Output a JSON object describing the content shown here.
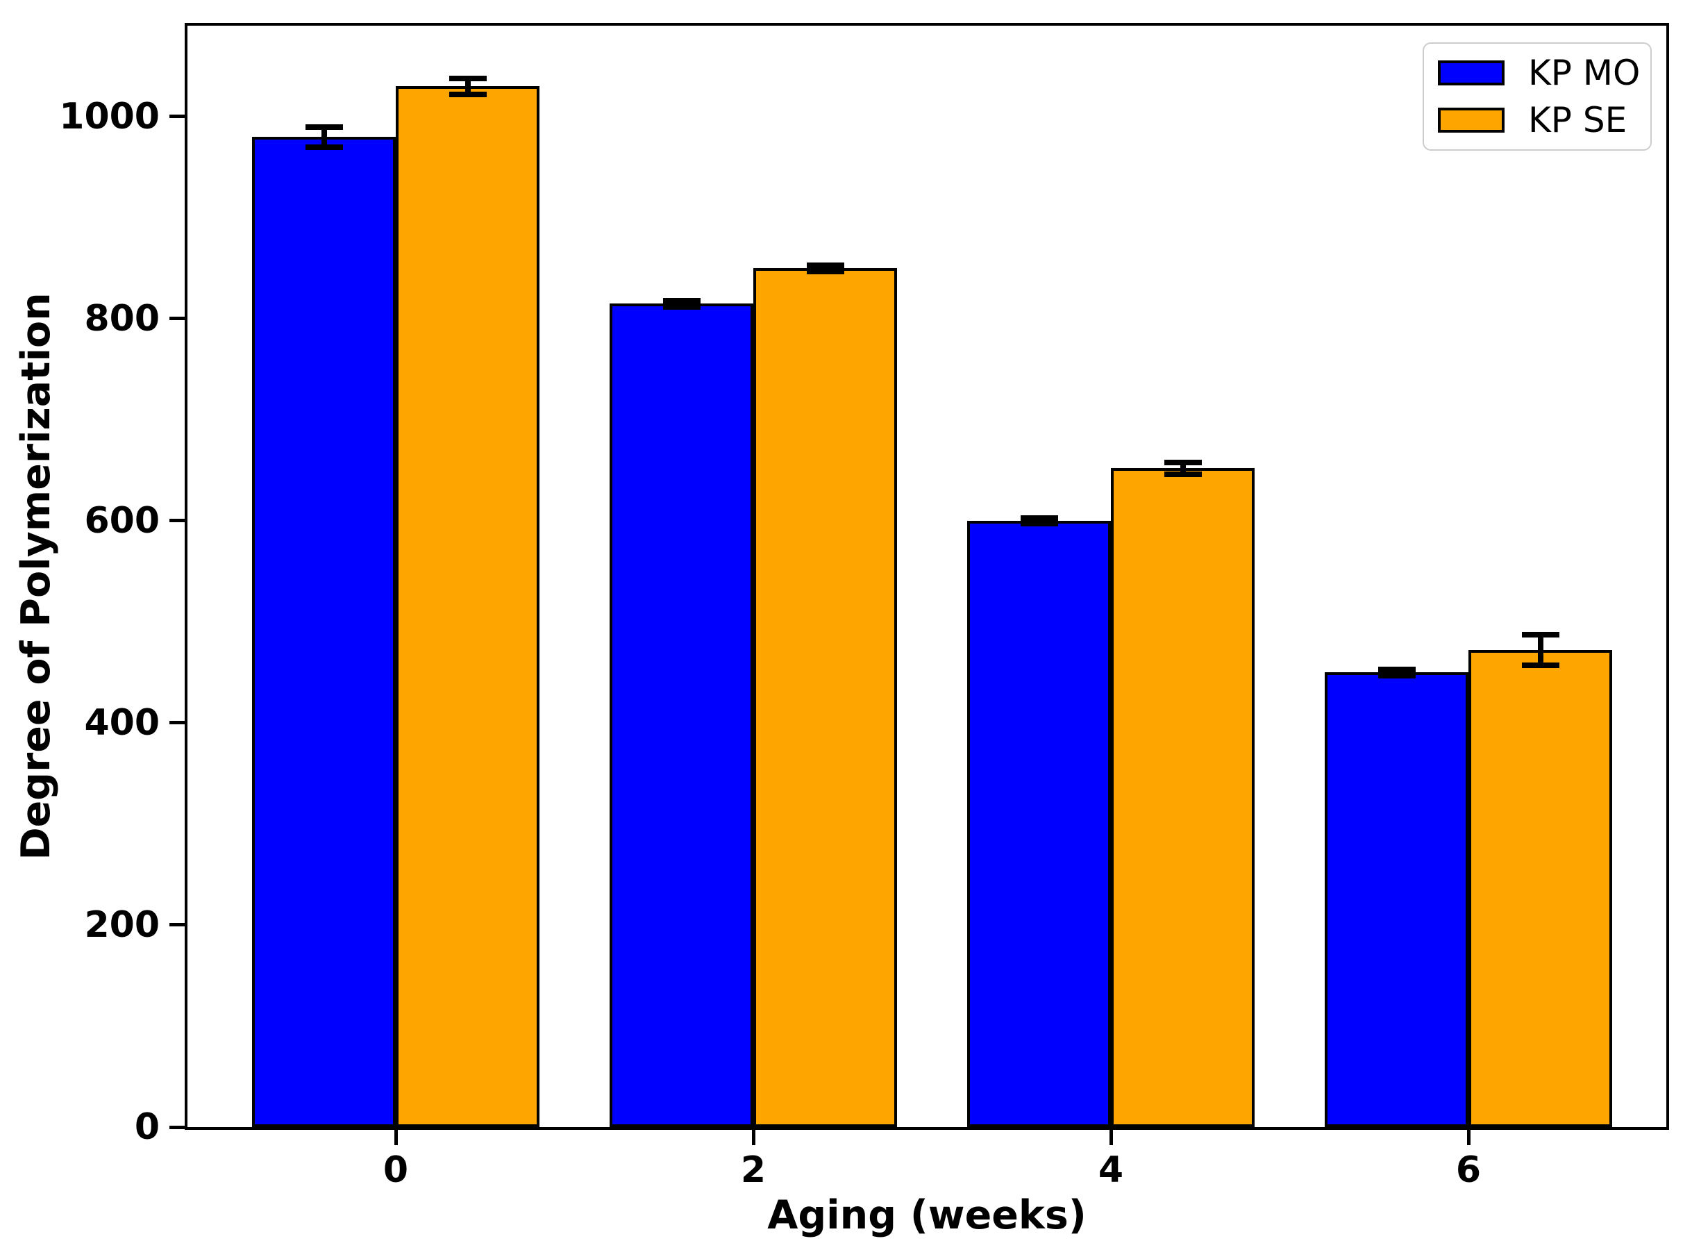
{
  "figure": {
    "background_color": "#ffffff"
  },
  "chart_data": {
    "type": "bar",
    "title": "",
    "xlabel": "Aging (weeks)",
    "ylabel": "Degree of Polymerization",
    "categories": [
      "0",
      "2",
      "4",
      "6"
    ],
    "series": [
      {
        "name": "KP MO",
        "color": "#0000FF",
        "values": [
          980,
          815,
          600,
          450
        ],
        "errors": [
          10,
          3,
          3,
          3
        ]
      },
      {
        "name": "KP SE",
        "color": "#FFA500",
        "values": [
          1030,
          850,
          652,
          472
        ],
        "errors": [
          8,
          3,
          6,
          15
        ]
      }
    ],
    "ylim": [
      0,
      1090
    ],
    "yticks": [
      "0",
      "200",
      "400",
      "600",
      "800",
      "1000"
    ],
    "grid": false,
    "legend_position": "upper-right",
    "bar_edge_color": "#000000",
    "error_bar_color": "#000000",
    "axis_color": "#000000"
  }
}
